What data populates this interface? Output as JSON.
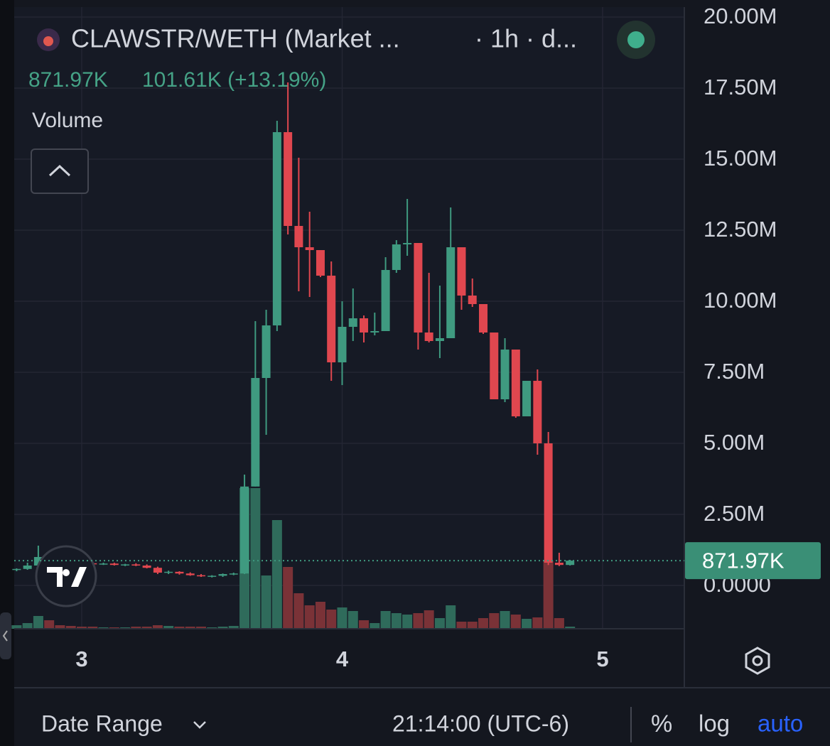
{
  "chart_data": {
    "type": "candlestick",
    "title": "CLAWSTR/WETH (Market ...",
    "interval": "· 1h · d...",
    "header_price": "871.97K",
    "header_change": "101.61K (+13.19%)",
    "volume_label": "Volume",
    "last_price": {
      "value": 0.87197,
      "label": "871.97K"
    },
    "up_color": "#3f9a80",
    "down_color": "#e0474f",
    "volume_up_color": "#2f6b5b",
    "volume_down_color": "#7a3237",
    "x": [
      2.75,
      2.7917,
      2.8333,
      2.875,
      2.9167,
      2.9583,
      3,
      3.0417,
      3.0833,
      3.125,
      3.1667,
      3.2083,
      3.25,
      3.2917,
      3.3333,
      3.375,
      3.4167,
      3.4583,
      3.5,
      3.5417,
      3.5833,
      3.625,
      3.6667,
      3.7083,
      3.75,
      3.7917,
      3.8333,
      3.875,
      3.9167,
      3.9583,
      4,
      4.0417,
      4.0833,
      4.125,
      4.1667,
      4.2083,
      4.25,
      4.2917,
      4.3333,
      4.375,
      4.4167,
      4.4583,
      4.5,
      4.5417,
      4.5833,
      4.625,
      4.6667,
      4.7083,
      4.75,
      4.7917,
      4.8333,
      4.875
    ],
    "open": [
      0.55,
      0.58,
      0.7,
      1.0,
      0.9,
      0.85,
      0.82,
      0.78,
      0.75,
      0.77,
      0.72,
      0.74,
      0.7,
      0.62,
      0.45,
      0.48,
      0.42,
      0.36,
      0.32,
      0.34,
      0.4,
      0.42,
      3.48,
      7.3,
      9.15,
      15.95,
      12.65,
      11.9,
      11.8,
      10.9,
      7.85,
      9.1,
      9.4,
      8.9,
      8.95,
      11.1,
      12,
      12.05,
      8.9,
      8.6,
      8.7,
      11.9,
      10.2,
      9.9,
      8.9,
      6.55,
      8.3,
      5.95,
      7.2,
      5.0,
      0.8,
      0.72
    ],
    "high": [
      0.6,
      0.8,
      1.4,
      1.05,
      0.95,
      0.9,
      0.85,
      0.82,
      0.8,
      0.8,
      0.76,
      0.78,
      0.74,
      0.66,
      0.52,
      0.5,
      0.46,
      0.4,
      0.36,
      0.42,
      0.45,
      3.9,
      9.3,
      9.7,
      16.35,
      17.7,
      15.05,
      13.15,
      11.8,
      11.4,
      10,
      10.45,
      9.5,
      9.6,
      11.55,
      12.15,
      13.6,
      12.05,
      11.0,
      10.55,
      13.3,
      11.9,
      10.8,
      9.9,
      8.9,
      8.7,
      8.3,
      7.2,
      7.6,
      5.4,
      1.15,
      0.9
    ],
    "low": [
      0.5,
      0.55,
      0.65,
      0.85,
      0.82,
      0.8,
      0.75,
      0.72,
      0.72,
      0.7,
      0.68,
      0.68,
      0.6,
      0.4,
      0.4,
      0.38,
      0.34,
      0.3,
      0.28,
      0.3,
      0.36,
      0.4,
      3.48,
      5.3,
      8.95,
      12.35,
      10.35,
      10.15,
      10.85,
      7.2,
      7.05,
      8.6,
      8.55,
      8.8,
      8.95,
      11,
      11.6,
      8.3,
      8.55,
      8.0,
      8.7,
      9.7,
      9.8,
      8.85,
      6.55,
      6.45,
      5.9,
      5.95,
      4.6,
      0.72,
      0.68,
      0.7
    ],
    "close": [
      0.58,
      0.7,
      1.0,
      0.9,
      0.85,
      0.82,
      0.78,
      0.75,
      0.77,
      0.72,
      0.74,
      0.7,
      0.62,
      0.45,
      0.48,
      0.42,
      0.36,
      0.32,
      0.34,
      0.4,
      0.42,
      3.48,
      7.3,
      9.15,
      15.95,
      12.65,
      11.9,
      11.8,
      10.9,
      7.85,
      9.1,
      9.4,
      8.9,
      8.95,
      11.1,
      12,
      12.05,
      8.9,
      8.6,
      8.7,
      11.9,
      10.2,
      9.9,
      8.9,
      6.55,
      8.3,
      5.95,
      7.2,
      5.0,
      0.8,
      0.72,
      0.87197
    ],
    "volume": [
      5,
      8,
      18,
      12,
      5,
      4,
      3,
      3,
      2,
      2,
      2,
      3,
      3,
      5,
      4,
      3,
      3,
      3,
      2,
      3,
      4,
      198,
      198,
      75,
      153,
      87,
      50,
      33,
      38,
      27,
      30,
      25,
      12,
      8,
      25,
      22,
      20,
      22,
      26,
      15,
      33,
      10,
      10,
      15,
      22,
      25,
      20,
      14,
      16,
      96,
      15,
      3
    ],
    "xlim": [
      2.7408,
      5.3138
    ],
    "xticks": [
      3,
      4,
      5
    ],
    "ylim": [
      -1.525,
      20.35
    ],
    "yticks": [
      {
        "value": 0,
        "label": "0.0000"
      },
      {
        "value": 2.5,
        "label": "2.50M"
      },
      {
        "value": 5,
        "label": "5.00M"
      },
      {
        "value": 7.5,
        "label": "7.50M"
      },
      {
        "value": 10,
        "label": "10.00M"
      },
      {
        "value": 12.5,
        "label": "12.50M"
      },
      {
        "value": 15,
        "label": "15.00M"
      },
      {
        "value": 17.5,
        "label": "17.50M"
      },
      {
        "value": 20,
        "label": "20.00M"
      }
    ],
    "grid": true
  },
  "toolbar": {
    "date_range": "Date Range",
    "time": "21:14:00 (UTC-6)",
    "percent": "%",
    "log": "log",
    "auto": "auto"
  }
}
